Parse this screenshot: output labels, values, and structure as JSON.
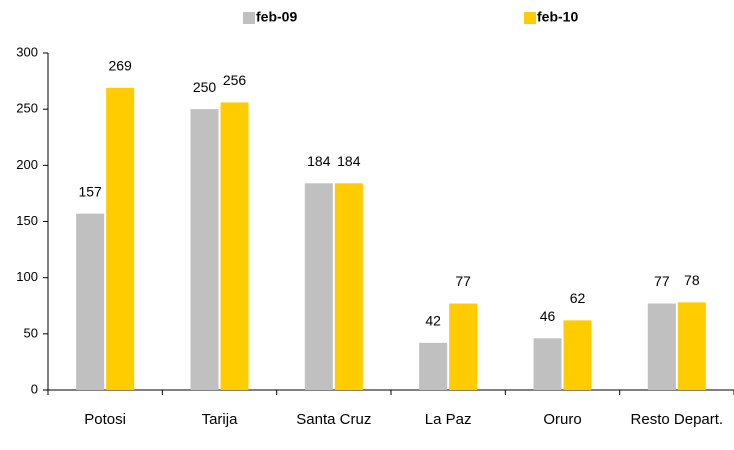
{
  "chart_data": {
    "type": "bar",
    "categories": [
      "Potosi",
      "Tarija",
      "Santa Cruz",
      "La Paz",
      "Oruro",
      "Resto Depart."
    ],
    "series": [
      {
        "name": "feb-09",
        "color": "#c0c0c0",
        "values": [
          157,
          250,
          184,
          42,
          46,
          77
        ]
      },
      {
        "name": "feb-10",
        "color": "#ffcc00",
        "values": [
          269,
          256,
          184,
          77,
          62,
          78
        ]
      }
    ],
    "ylim": [
      0,
      300
    ],
    "yticks": [
      0,
      50,
      100,
      150,
      200,
      250,
      300
    ],
    "grid": false,
    "legend": "top"
  }
}
